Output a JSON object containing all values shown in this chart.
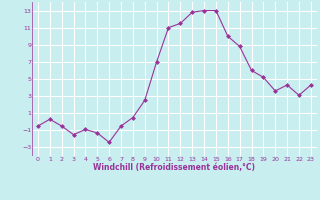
{
  "x": [
    0,
    1,
    2,
    3,
    4,
    5,
    6,
    7,
    8,
    9,
    10,
    11,
    12,
    13,
    14,
    15,
    16,
    17,
    18,
    19,
    20,
    21,
    22,
    23
  ],
  "y": [
    -0.5,
    0.3,
    -0.5,
    -1.5,
    -0.9,
    -1.3,
    -2.4,
    -0.5,
    0.5,
    2.5,
    7.0,
    11.0,
    11.5,
    12.8,
    13.0,
    13.0,
    10.0,
    8.8,
    6.0,
    5.2,
    3.6,
    4.3,
    3.1,
    4.3
  ],
  "line_color": "#993399",
  "marker": "D",
  "marker_size": 2,
  "bg_color": "#c8eef0",
  "grid_color": "#aadddd",
  "xlabel": "Windchill (Refroidissement éolien,°C)",
  "xlabel_color": "#993399",
  "tick_color": "#993399",
  "ylim": [
    -4,
    14
  ],
  "xlim": [
    -0.5,
    23.5
  ],
  "yticks": [
    -3,
    -1,
    1,
    3,
    5,
    7,
    9,
    11,
    13
  ],
  "xticks": [
    0,
    1,
    2,
    3,
    4,
    5,
    6,
    7,
    8,
    9,
    10,
    11,
    12,
    13,
    14,
    15,
    16,
    17,
    18,
    19,
    20,
    21,
    22,
    23
  ]
}
